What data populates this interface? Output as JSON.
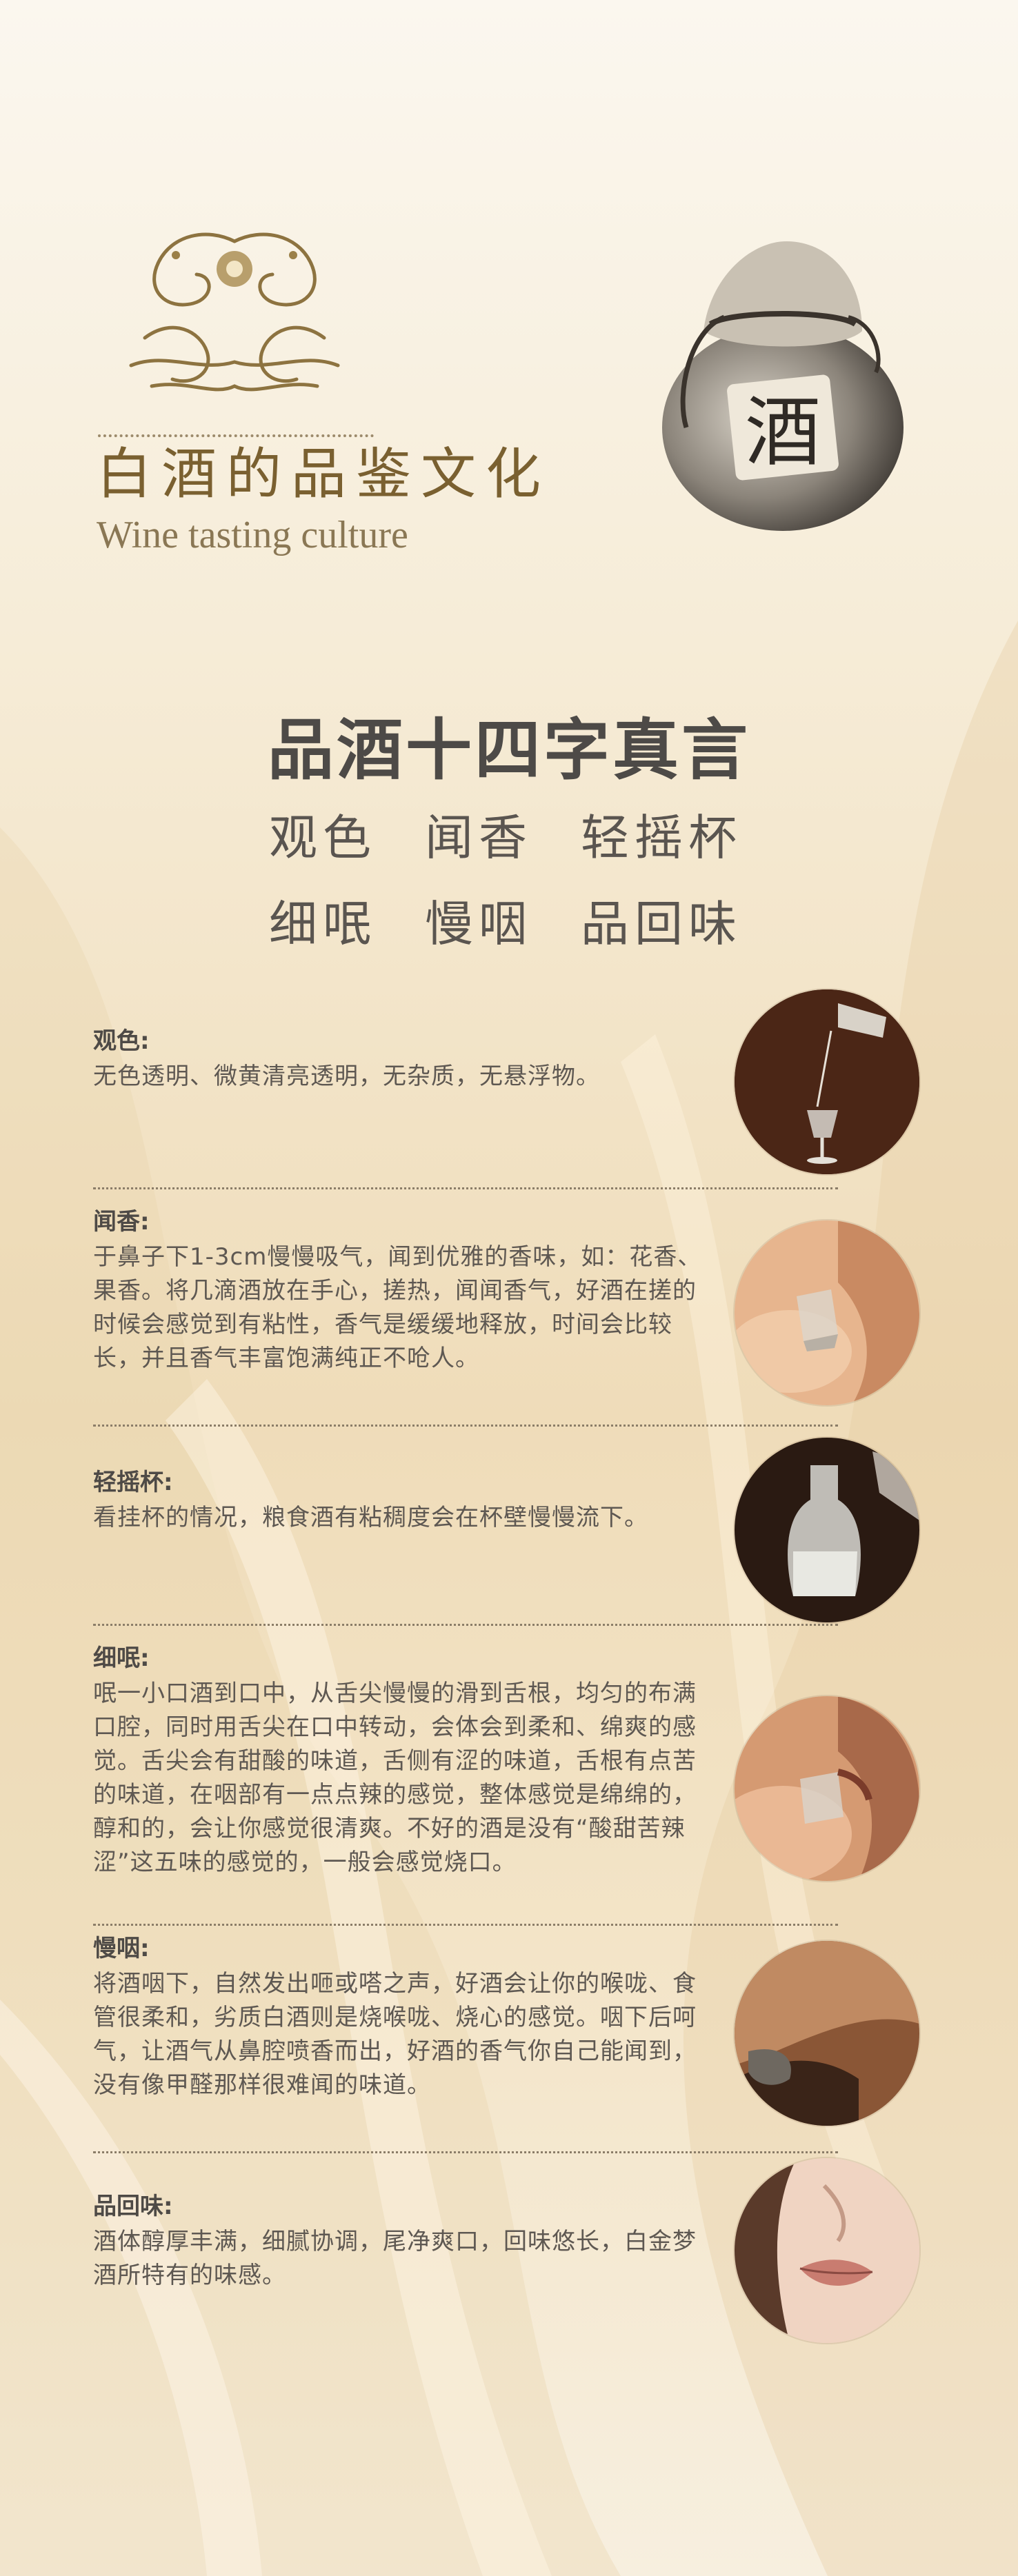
{
  "header": {
    "title_cn": "白酒的品鉴文化",
    "title_en": "Wine tasting culture",
    "jar_char": "酒"
  },
  "heading": {
    "title": "品酒十四字真言",
    "row1": [
      "观色",
      "闻香",
      "轻摇杯"
    ],
    "row2": [
      "细呡",
      "慢咽",
      "品回味"
    ]
  },
  "sections": [
    {
      "title": "观色:",
      "body": "无色透明、微黄清亮透明，无杂质，无悬浮物。"
    },
    {
      "title": "闻香:",
      "body": "于鼻子下1-3cm慢慢吸气，闻到优雅的香味，如：花香、果香。将几滴酒放在手心，搓热，闻闻香气，好酒在搓的时候会感觉到有粘性，香气是缓缓地释放，时间会比较长，并且香气丰富饱满纯正不呛人。"
    },
    {
      "title": "轻摇杯:",
      "body": "看挂杯的情况，粮食酒有粘稠度会在杯壁慢慢流下。"
    },
    {
      "title": "细呡:",
      "body": "呡一小口酒到口中，从舌尖慢慢的滑到舌根，均匀的布满口腔，同时用舌尖在口中转动，会体会到柔和、绵爽的感觉。舌尖会有甜酸的味道，舌侧有涩的味道，舌根有点苦的味道，在咽部有一点点辣的感觉，整体感觉是绵绵的，醇和的，会让你感觉很清爽。不好的酒是没有“酸甜苦辣涩”这五味的感觉的，一般会感觉烧口。"
    },
    {
      "title": "慢咽:",
      "body": "将酒咽下，自然发出咂或嗒之声，好酒会让你的喉咙、食管很柔和，劣质白酒则是烧喉咙、烧心的感觉。咽下后呵气，让酒气从鼻腔喷香而出，好酒的香气你自己能闻到，没有像甲醛那样很难闻的味道。"
    },
    {
      "title": "品回味:",
      "body": "酒体醇厚丰满，细腻协调，尾净爽口，回味悠长，白金梦酒所特有的味感。"
    }
  ]
}
